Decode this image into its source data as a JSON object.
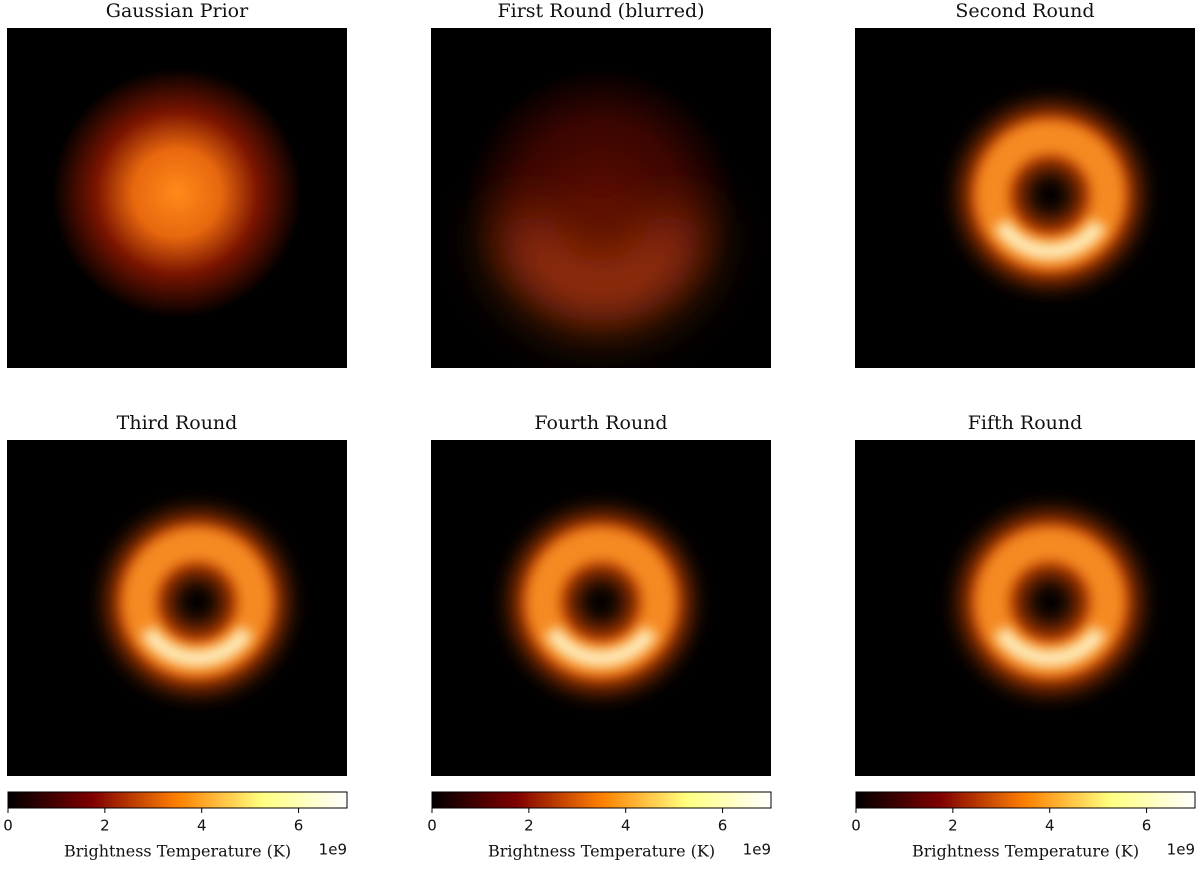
{
  "chart_data": [
    {
      "type": "image",
      "title": "Gaussian Prior"
    },
    {
      "type": "image",
      "title": "First Round (blurred)"
    },
    {
      "type": "image",
      "title": "Second Round"
    },
    {
      "type": "image",
      "title": "Third Round"
    },
    {
      "type": "image",
      "title": "Fourth Round"
    },
    {
      "type": "image",
      "title": "Fifth Round"
    },
    {
      "type": "colorbar",
      "colormap": "afmhot",
      "xlabel": "Brightness Temperature (K)",
      "offset_label": "1e9",
      "xlim": [
        0,
        7
      ],
      "xticks": [
        0,
        2,
        4,
        6
      ]
    },
    {
      "type": "colorbar",
      "colormap": "afmhot",
      "xlabel": "Brightness Temperature (K)",
      "offset_label": "1e9",
      "xlim": [
        0,
        7
      ],
      "xticks": [
        0,
        2,
        4,
        6
      ]
    },
    {
      "type": "colorbar",
      "colormap": "afmhot",
      "xlabel": "Brightness Temperature (K)",
      "offset_label": "1e9",
      "xlim": [
        0,
        7
      ],
      "xticks": [
        0,
        2,
        4,
        6
      ]
    }
  ]
}
